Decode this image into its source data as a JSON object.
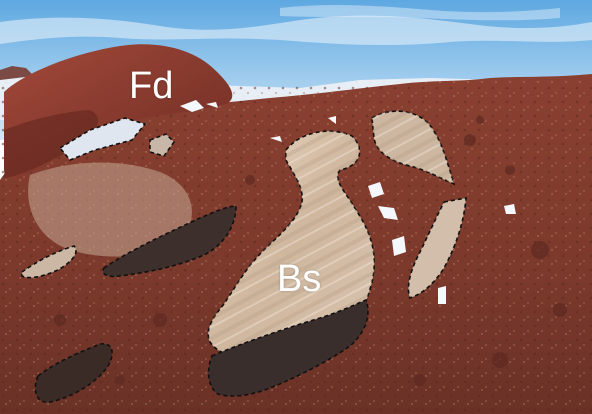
{
  "labels": {
    "fd": "Fd",
    "bs": "Bs"
  },
  "colors": {
    "sky_top": "#5fa9e2",
    "sky_bottom": "#cfe6f7",
    "ice": "#e9eef6",
    "rock_red": "#8e3b2c",
    "rock_dark": "#5b2920",
    "outcrop_light": "#d9c7b1",
    "outcrop_dark": "#3a2d2c",
    "snow": "#f4f7fb"
  },
  "icons": [
    "outcrop-outline",
    "snow-patch"
  ]
}
